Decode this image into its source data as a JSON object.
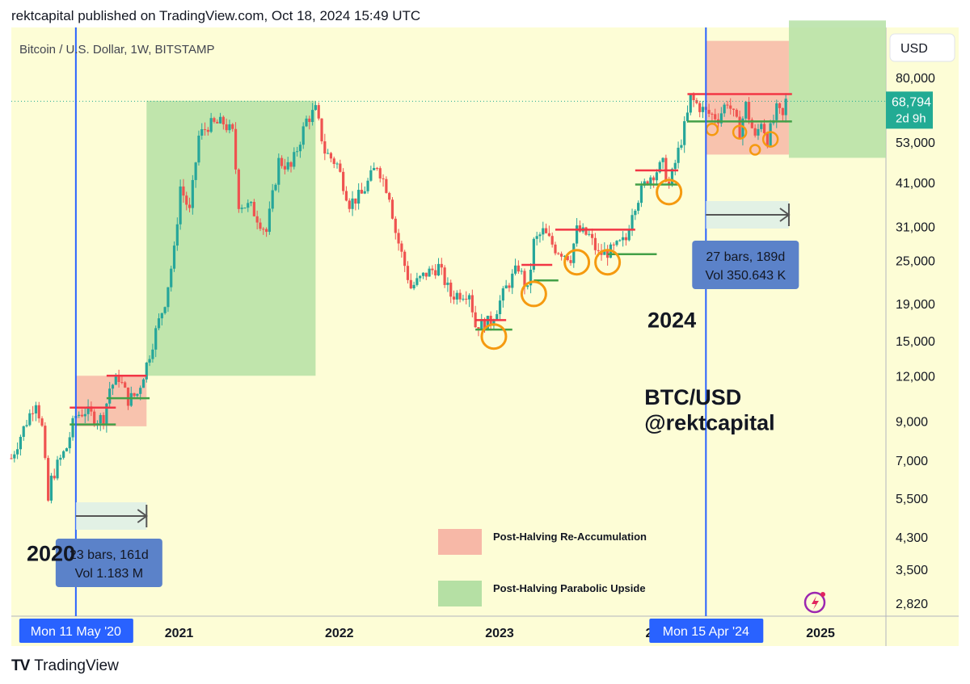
{
  "published": "rektcapital published on TradingView.com, Oct 18, 2024 15:49 UTC",
  "footer_brand": "TradingView",
  "chart_data": {
    "type": "line",
    "title": "Bitcoin / U.S. Dollar, 1W, BITSTAMP",
    "currency_button": "USD",
    "y_scale": "log",
    "ylim": [
      2600,
      110000
    ],
    "y_ticks": [
      "80,000",
      "53,000",
      "41,000",
      "31,000",
      "25,000",
      "19,000",
      "15,000",
      "12,000",
      "9,000",
      "7,000",
      "5,500",
      "4,300",
      "3,500",
      "2,820"
    ],
    "x_range": [
      "2019-12-16",
      "2025-05-30"
    ],
    "x_ticks": [
      "2021",
      "2022",
      "2023",
      "2024",
      "2025"
    ],
    "x_tick_dates": [
      "2021-01-01",
      "2022-01-01",
      "2023-01-01",
      "2024-01-01",
      "2025-01-01"
    ],
    "x_partial_label": "20",
    "last_price": "68,794",
    "countdown": "2d 9h",
    "halvings": [
      {
        "date": "2020-05-11",
        "label": "Mon 11 May '20"
      },
      {
        "date": "2024-04-15",
        "label": "Mon 15 Apr '24"
      }
    ],
    "measures": [
      {
        "start": "2020-05-11",
        "end": "2020-10-19",
        "bars": "23 bars, 161d",
        "vol": "Vol 1.183 M"
      },
      {
        "start": "2024-04-15",
        "end": "2024-10-21",
        "bars": "27 bars, 189d",
        "vol": "Vol 350.643 K"
      }
    ],
    "zones": [
      {
        "kind": "reaccumulation",
        "start": "2020-05-11",
        "end": "2020-10-19",
        "low": 8700,
        "high": 12000
      },
      {
        "kind": "parabolic",
        "start": "2020-10-19",
        "end": "2021-11-08",
        "low": 12000,
        "high": 69000
      },
      {
        "kind": "reaccumulation",
        "start": "2024-04-15",
        "end": "2024-10-21",
        "low": 49000,
        "high": 101000
      },
      {
        "kind": "parabolic",
        "start": "2024-10-21",
        "end": "2025-05-30",
        "low": 48000,
        "high": 115000
      }
    ],
    "levels": [
      {
        "color": "red",
        "start": "2020-04-27",
        "end": "2020-08-10",
        "price": 9800
      },
      {
        "color": "green",
        "start": "2020-04-27",
        "end": "2020-08-10",
        "price": 8800
      },
      {
        "color": "red",
        "start": "2020-07-20",
        "end": "2020-10-19",
        "price": 12000
      },
      {
        "color": "green",
        "start": "2020-07-20",
        "end": "2020-10-26",
        "price": 10400
      },
      {
        "color": "red",
        "start": "2022-11-07",
        "end": "2023-01-16",
        "price": 17100
      },
      {
        "color": "green",
        "start": "2022-11-07",
        "end": "2023-01-30",
        "price": 16100
      },
      {
        "color": "red",
        "start": "2023-02-20",
        "end": "2023-05-01",
        "price": 24300
      },
      {
        "color": "green",
        "start": "2023-03-20",
        "end": "2023-05-15",
        "price": 22000
      },
      {
        "color": "red",
        "start": "2023-05-08",
        "end": "2023-11-06",
        "price": 30400
      },
      {
        "color": "green",
        "start": "2023-09-04",
        "end": "2023-12-25",
        "price": 26000
      },
      {
        "color": "red",
        "start": "2023-11-06",
        "end": "2024-02-12",
        "price": 44300
      },
      {
        "color": "green",
        "start": "2023-11-06",
        "end": "2024-02-12",
        "price": 40500
      },
      {
        "color": "red",
        "start": "2024-03-04",
        "end": "2024-10-28",
        "price": 72000
      },
      {
        "color": "green",
        "start": "2024-03-04",
        "end": "2024-10-28",
        "price": 60500
      }
    ],
    "circles": [
      {
        "date": "2022-12-19",
        "price": 15400,
        "r": 15
      },
      {
        "date": "2023-03-20",
        "price": 20200,
        "r": 15
      },
      {
        "date": "2023-06-26",
        "price": 24700,
        "r": 15
      },
      {
        "date": "2023-09-04",
        "price": 24700,
        "r": 15
      },
      {
        "date": "2024-01-22",
        "price": 38600,
        "r": 15
      },
      {
        "date": "2024-04-29",
        "price": 57500,
        "r": 7
      },
      {
        "date": "2024-07-01",
        "price": 56500,
        "r": 8
      },
      {
        "date": "2024-08-05",
        "price": 50500,
        "r": 6
      },
      {
        "date": "2024-09-09",
        "price": 54000,
        "r": 9
      }
    ],
    "series": [
      {
        "values": [
          [
            "2019-12-16",
            7100
          ],
          [
            "2020-01-06",
            8200
          ],
          [
            "2020-01-27",
            9400
          ],
          [
            "2020-02-10",
            10300
          ],
          [
            "2020-02-24",
            8600
          ],
          [
            "2020-03-09",
            5400
          ],
          [
            "2020-03-16",
            6200
          ],
          [
            "2020-03-30",
            6800
          ],
          [
            "2020-04-20",
            7600
          ],
          [
            "2020-05-04",
            8800
          ],
          [
            "2020-05-11",
            9300
          ],
          [
            "2020-06-01",
            9600
          ],
          [
            "2020-06-29",
            9100
          ],
          [
            "2020-07-13",
            9200
          ],
          [
            "2020-07-27",
            11100
          ],
          [
            "2020-08-17",
            11900
          ],
          [
            "2020-09-07",
            10300
          ],
          [
            "2020-09-28",
            10700
          ],
          [
            "2020-10-19",
            12900
          ],
          [
            "2020-11-09",
            15900
          ],
          [
            "2020-11-30",
            19300
          ],
          [
            "2020-12-21",
            26500
          ],
          [
            "2021-01-04",
            40000
          ],
          [
            "2021-01-25",
            34000
          ],
          [
            "2021-02-15",
            55000
          ],
          [
            "2021-03-08",
            59000
          ],
          [
            "2021-04-12",
            60000
          ],
          [
            "2021-05-03",
            56000
          ],
          [
            "2021-05-17",
            36000
          ],
          [
            "2021-06-14",
            35000
          ],
          [
            "2021-07-19",
            30000
          ],
          [
            "2021-08-16",
            47000
          ],
          [
            "2021-09-13",
            45000
          ],
          [
            "2021-10-04",
            54000
          ],
          [
            "2021-10-18",
            61000
          ],
          [
            "2021-11-08",
            65000
          ],
          [
            "2021-11-29",
            50000
          ],
          [
            "2021-12-27",
            46000
          ],
          [
            "2022-01-24",
            36000
          ],
          [
            "2022-02-21",
            38000
          ],
          [
            "2022-03-28",
            46000
          ],
          [
            "2022-04-25",
            38000
          ],
          [
            "2022-05-09",
            30000
          ],
          [
            "2022-06-13",
            21000
          ],
          [
            "2022-07-18",
            23000
          ],
          [
            "2022-08-15",
            24000
          ],
          [
            "2022-09-12",
            20000
          ],
          [
            "2022-10-24",
            20500
          ],
          [
            "2022-11-07",
            16500
          ],
          [
            "2022-12-12",
            16900
          ],
          [
            "2023-01-16",
            21000
          ],
          [
            "2023-02-13",
            24000
          ],
          [
            "2023-03-06",
            20500
          ],
          [
            "2023-03-20",
            28000
          ],
          [
            "2023-04-10",
            30000
          ],
          [
            "2023-05-08",
            27000
          ],
          [
            "2023-06-12",
            25500
          ],
          [
            "2023-06-26",
            30300
          ],
          [
            "2023-07-24",
            29200
          ],
          [
            "2023-08-14",
            26000
          ],
          [
            "2023-09-11",
            26500
          ],
          [
            "2023-10-16",
            28500
          ],
          [
            "2023-10-30",
            34500
          ],
          [
            "2023-12-04",
            42000
          ],
          [
            "2024-01-08",
            46000
          ],
          [
            "2024-01-22",
            40000
          ],
          [
            "2024-02-12",
            50000
          ],
          [
            "2024-03-04",
            63000
          ],
          [
            "2024-03-11",
            70000
          ],
          [
            "2024-04-15",
            64000
          ],
          [
            "2024-05-13",
            62000
          ],
          [
            "2024-06-03",
            69000
          ],
          [
            "2024-07-01",
            57000
          ],
          [
            "2024-07-15",
            67000
          ],
          [
            "2024-08-05",
            54000
          ],
          [
            "2024-08-19",
            61000
          ],
          [
            "2024-09-02",
            54000
          ],
          [
            "2024-09-23",
            65000
          ],
          [
            "2024-10-07",
            62000
          ],
          [
            "2024-10-14",
            68794
          ]
        ]
      }
    ],
    "legend": [
      {
        "kind": "reaccumulation",
        "label": "Post-Halving Re-Accumulation"
      },
      {
        "kind": "parabolic",
        "label": "Post-Halving Parabolic Upside"
      }
    ],
    "annotations": [
      {
        "text": "2020",
        "date": "2020-01-20",
        "price": 3700
      },
      {
        "text": "2024",
        "date": "2023-12-04",
        "price": 16300
      },
      {
        "text": "BTC/USD",
        "date": "2023-11-27",
        "price": 10000
      },
      {
        "text": "@rektcapital",
        "date": "2023-11-27",
        "price": 8500
      }
    ],
    "colors": {
      "bg": "#fdfdd6",
      "up": "#26a69a",
      "down": "#ef5350",
      "reaccumulation": "#f7b8a7",
      "parabolic": "#b5e0a4",
      "halving_line": "#2962ff",
      "red_level": "#f23645",
      "green_level": "#43a047",
      "circle": "#f59a10",
      "measure_box": "#5b82c9",
      "price_tag": "#22ab94"
    }
  }
}
